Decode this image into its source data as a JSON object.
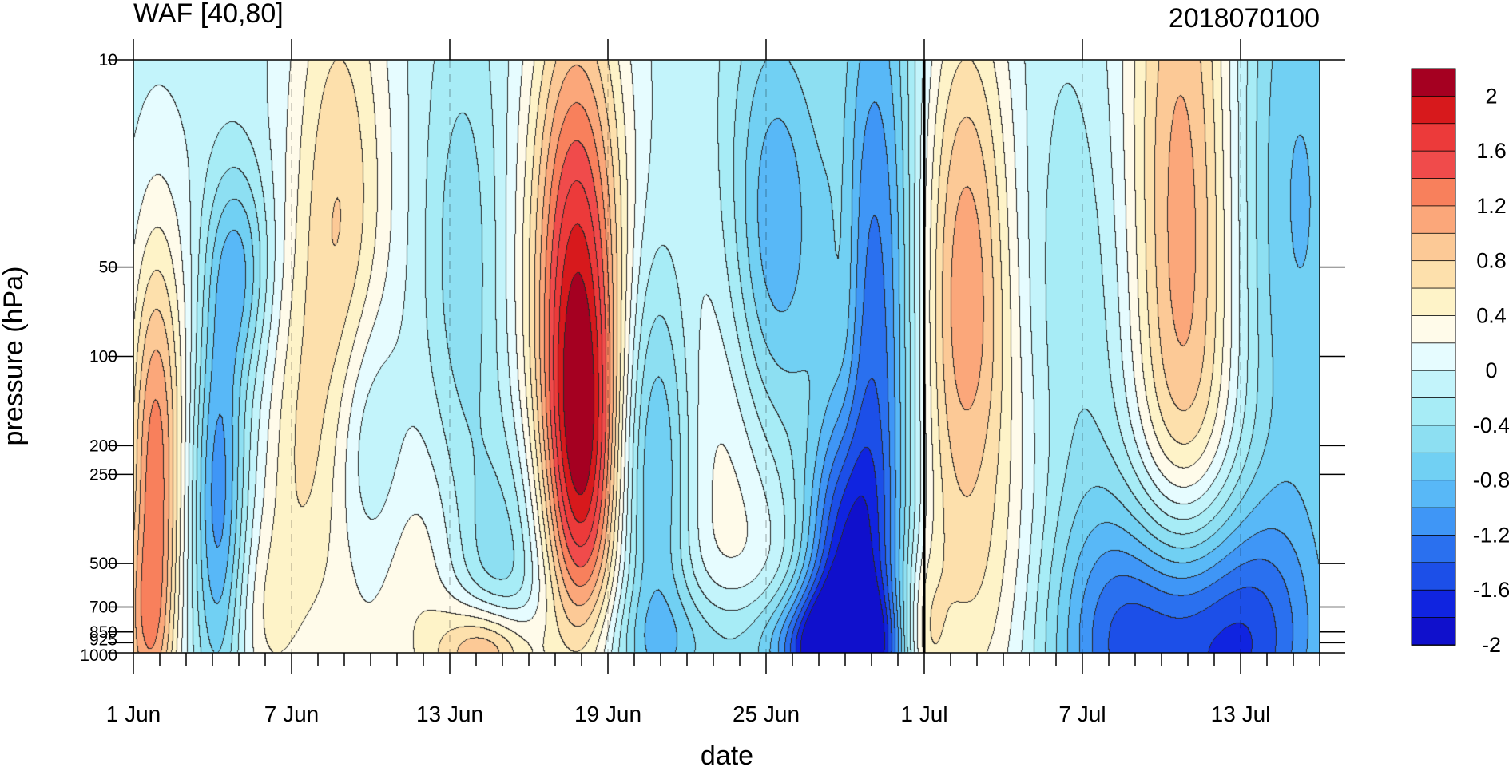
{
  "chart_data": {
    "type": "heatmap",
    "title_left": "WAF [40,80]",
    "title_right": "2018070100",
    "xlabel": "date",
    "ylabel": "pressure (hPa)",
    "x_ticks": [
      "1 Jun",
      "7 Jun",
      "13 Jun",
      "19 Jun",
      "25 Jun",
      "1 Jul",
      "7 Jul",
      "13 Jul"
    ],
    "x_tick_days": [
      0,
      6,
      12,
      18,
      24,
      30,
      36,
      42
    ],
    "x_range_days": [
      0,
      45
    ],
    "y_ticks": [
      "10",
      "50",
      "100",
      "200",
      "250",
      "500",
      "700",
      "850",
      "925",
      "1000"
    ],
    "y_tick_values": [
      10,
      50,
      100,
      200,
      250,
      500,
      700,
      850,
      925,
      1000
    ],
    "y_range": [
      1000,
      10
    ],
    "y_scale": "log",
    "marker_line": "1 Jul",
    "colorbar": {
      "labels": [
        "2",
        "1.6",
        "1.2",
        "0.8",
        "0.4",
        "0",
        "-0.4",
        "-0.8",
        "-1.2",
        "-1.6",
        "-2"
      ],
      "colors": [
        "#a50021",
        "#d7191c",
        "#ec3a3a",
        "#f04b4b",
        "#f8805c",
        "#fba77a",
        "#fcc996",
        "#fde0ac",
        "#fef3c8",
        "#fffbea",
        "#e6fcff",
        "#c3f4fb",
        "#a7ecf6",
        "#8ddff2",
        "#71d0f3",
        "#58b8f7",
        "#3f96f6",
        "#2a70ef",
        "#1c4fe8",
        "#1024e0",
        "#1010cc"
      ]
    },
    "levels": [
      -2,
      -1.6,
      -1.2,
      -0.8,
      -0.4,
      0,
      0.4,
      0.8,
      1.2,
      1.6,
      2
    ],
    "blobs": [
      {
        "day": 0.8,
        "p": 260,
        "sx": 0.7,
        "sy": 0.55,
        "a": 1.3
      },
      {
        "day": 0.3,
        "p": 900,
        "sx": 0.8,
        "sy": 0.25,
        "a": 0.6
      },
      {
        "day": 3.2,
        "p": 270,
        "sx": 0.7,
        "sy": 0.5,
        "a": -1.1
      },
      {
        "day": 4.0,
        "p": 50,
        "sx": 0.8,
        "sy": 0.25,
        "a": -0.7
      },
      {
        "day": 2.0,
        "p": 100,
        "sx": 1.2,
        "sy": 0.5,
        "a": 0.25
      },
      {
        "day": 7.8,
        "p": 50,
        "sx": 1.4,
        "sy": 0.9,
        "a": 0.95
      },
      {
        "day": 6.0,
        "p": 250,
        "sx": 0.9,
        "sy": 0.4,
        "a": 0.35
      },
      {
        "day": 5.0,
        "p": 800,
        "sx": 0.9,
        "sy": 0.25,
        "a": 0.4
      },
      {
        "day": 8.8,
        "p": 200,
        "sx": 1.0,
        "sy": 0.35,
        "a": -0.65
      },
      {
        "day": 11.0,
        "p": 600,
        "sx": 1.6,
        "sy": 0.4,
        "a": 0.45
      },
      {
        "day": 14.0,
        "p": 550,
        "sx": 1.3,
        "sy": 0.35,
        "a": -0.55
      },
      {
        "day": 13.5,
        "p": 1000,
        "sx": 1.3,
        "sy": 0.12,
        "a": 1.3
      },
      {
        "day": 12.5,
        "p": 50,
        "sx": 1.0,
        "sy": 0.6,
        "a": -0.45
      },
      {
        "day": 16.8,
        "p": 50,
        "sx": 1.3,
        "sy": 0.7,
        "a": 1.75
      },
      {
        "day": 17.0,
        "p": 260,
        "sx": 1.0,
        "sy": 0.45,
        "a": 1.2
      },
      {
        "day": 19.8,
        "p": 240,
        "sx": 1.0,
        "sy": 0.5,
        "a": -0.9
      },
      {
        "day": 23.5,
        "p": 180,
        "sx": 2.0,
        "sy": 0.7,
        "a": 0.75
      },
      {
        "day": 24.3,
        "p": 50,
        "sx": 1.4,
        "sy": 0.6,
        "a": -1.3
      },
      {
        "day": 27.0,
        "p": 50,
        "sx": 0.35,
        "sy": 0.45,
        "a": 0.2
      },
      {
        "day": 28.2,
        "p": 100,
        "sx": 1.1,
        "sy": 1.1,
        "a": -1.25
      },
      {
        "day": 26.8,
        "p": 500,
        "sx": 1.1,
        "sy": 0.35,
        "a": -1.3
      },
      {
        "day": 26.5,
        "p": 1000,
        "sx": 1.5,
        "sy": 0.15,
        "a": -1.6
      },
      {
        "day": 22.0,
        "p": 950,
        "sx": 3.0,
        "sy": 0.15,
        "a": -0.6
      },
      {
        "day": 30.0,
        "p": 900,
        "sx": 0.6,
        "sy": 0.2,
        "a": 0.6
      },
      {
        "day": 31.6,
        "p": 50,
        "sx": 1.3,
        "sy": 0.7,
        "a": 1.2
      },
      {
        "day": 32.5,
        "p": 500,
        "sx": 2.0,
        "sy": 0.55,
        "a": 0.55
      },
      {
        "day": 32.0,
        "p": 250,
        "sx": 0.9,
        "sy": 0.25,
        "a": -0.15
      },
      {
        "day": 39.8,
        "p": 50,
        "sx": 1.6,
        "sy": 1.2,
        "a": 1.4
      },
      {
        "day": 40.0,
        "p": 950,
        "sx": 3.0,
        "sy": 0.35,
        "a": -2.1
      },
      {
        "day": 44.0,
        "p": 30,
        "sx": 2.0,
        "sy": 1.0,
        "a": -0.75
      },
      {
        "day": 36.5,
        "p": 150,
        "sx": 2.5,
        "sy": 0.8,
        "a": -0.4
      }
    ]
  }
}
